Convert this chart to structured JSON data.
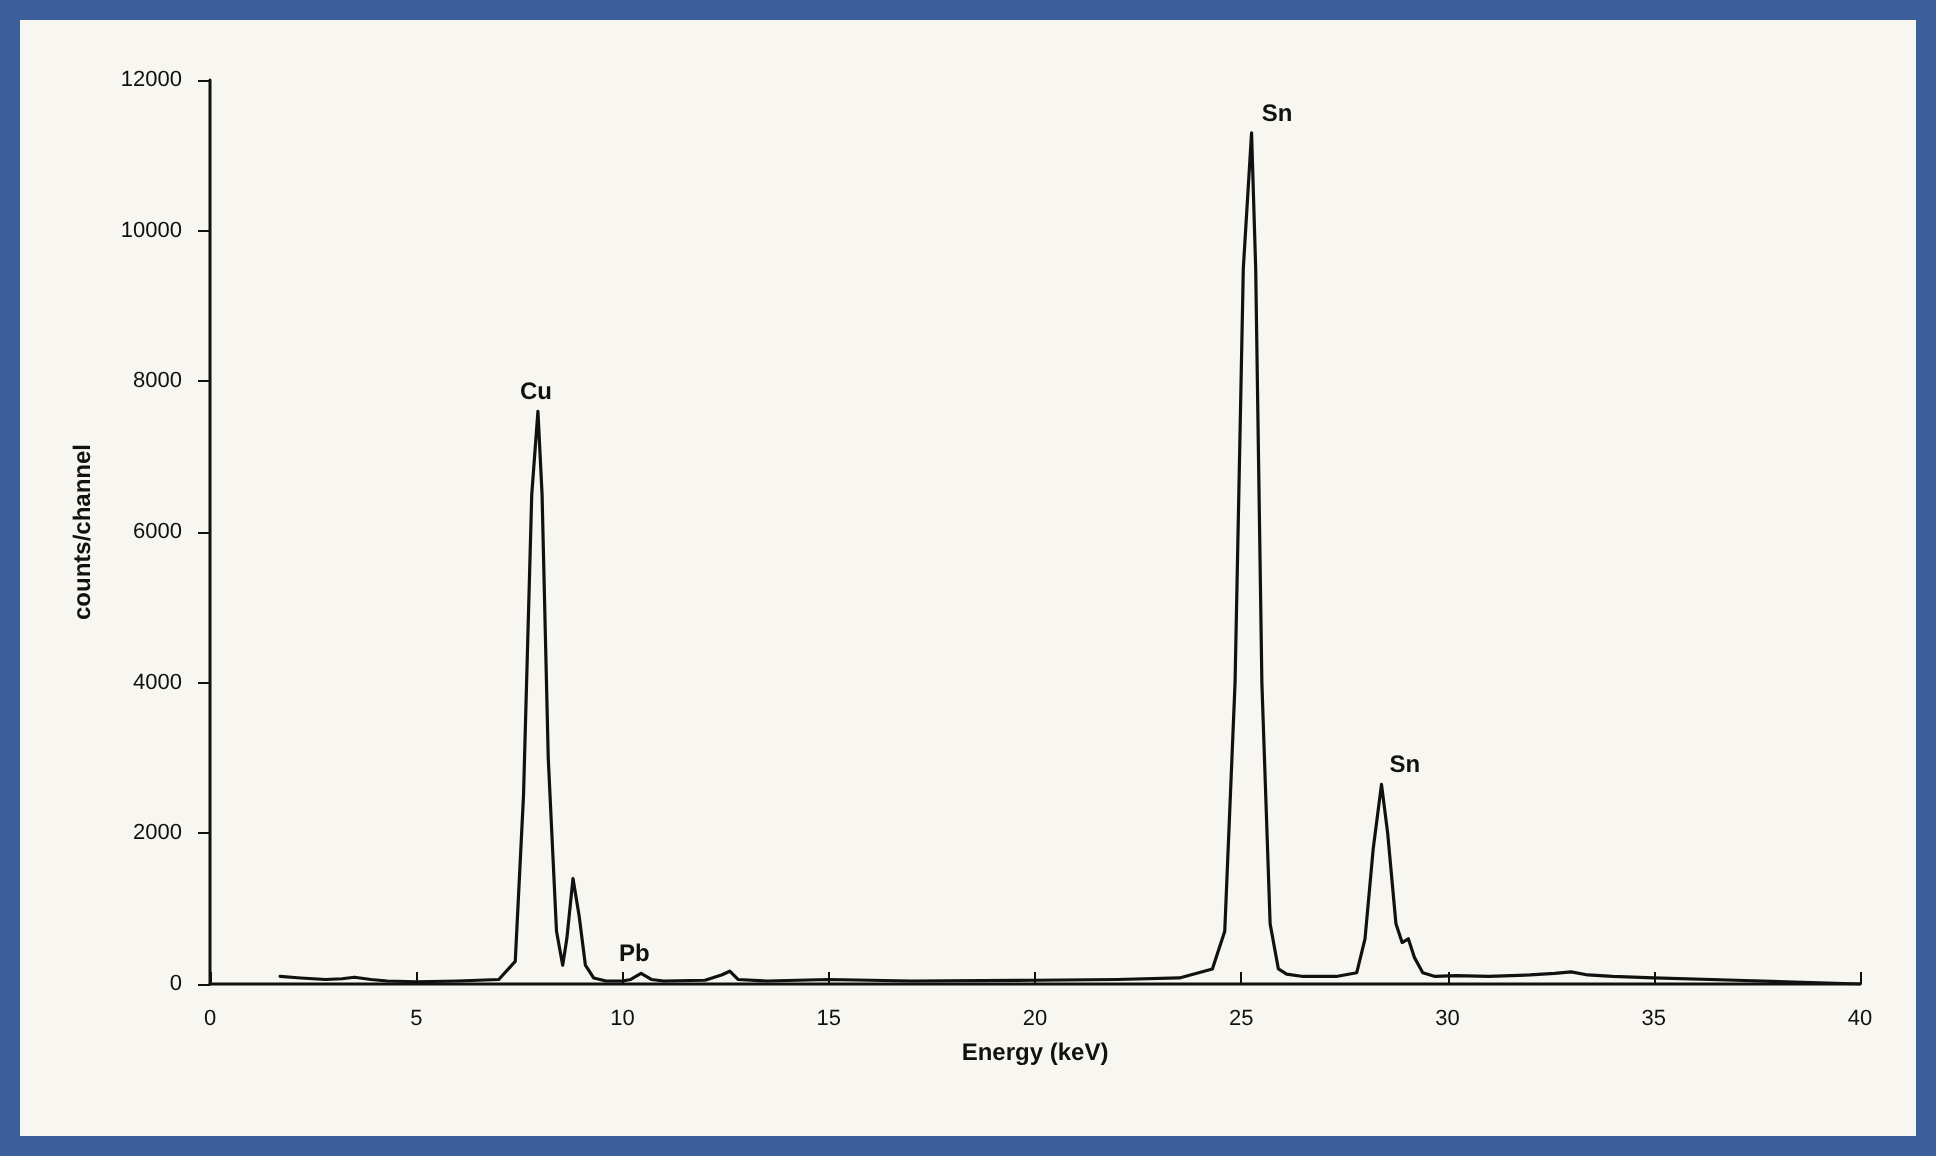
{
  "chart_data": {
    "type": "line",
    "xlabel": "Energy (keV)",
    "ylabel": "counts/channel",
    "series": [
      {
        "color": "#111111",
        "x": [
          1.7,
          2.2,
          2.8,
          3.2,
          3.5,
          3.9,
          4.3,
          5,
          6,
          7,
          7.4,
          7.6,
          7.8,
          7.95,
          8.05,
          8.2,
          8.4,
          8.55,
          8.65,
          8.8,
          8.95,
          9.1,
          9.3,
          9.6,
          10,
          10.2,
          10.45,
          10.7,
          11,
          12,
          12.4,
          12.6,
          12.8,
          13.5,
          15,
          17,
          20,
          22,
          23.5,
          24.3,
          24.6,
          24.85,
          25.05,
          25.25,
          25.35,
          25.5,
          25.7,
          25.9,
          26.1,
          26.5,
          27.3,
          27.8,
          28.0,
          28.2,
          28.4,
          28.55,
          28.75,
          28.9,
          29.05,
          29.2,
          29.4,
          29.7,
          30.2,
          31,
          32,
          32.6,
          33,
          33.4,
          34,
          35,
          37,
          40
        ],
        "values": [
          100,
          80,
          60,
          70,
          90,
          60,
          40,
          30,
          40,
          60,
          300,
          2500,
          6500,
          7600,
          6500,
          3000,
          700,
          250,
          600,
          1400,
          900,
          250,
          80,
          40,
          40,
          60,
          140,
          60,
          40,
          50,
          120,
          170,
          60,
          40,
          60,
          40,
          50,
          60,
          80,
          200,
          700,
          4000,
          9500,
          11300,
          9500,
          4000,
          800,
          200,
          130,
          100,
          100,
          150,
          600,
          1800,
          2650,
          2000,
          800,
          550,
          600,
          350,
          150,
          100,
          110,
          100,
          120,
          140,
          160,
          120,
          100,
          80,
          50,
          0
        ]
      }
    ],
    "xlim": [
      0,
      40
    ],
    "xticks": [
      0,
      5,
      10,
      15,
      20,
      25,
      30,
      35,
      40
    ],
    "ylim": [
      0,
      12000
    ],
    "yticks": [
      0,
      2000,
      4000,
      6000,
      8000,
      10000,
      12000
    ],
    "grid": false,
    "marker": "none",
    "line_style": "solid",
    "annotations": [
      {
        "text": "Cu",
        "x": 8.0,
        "y": 7600
      },
      {
        "text": "Pb",
        "x": 10.4,
        "y": 140
      },
      {
        "text": "Sn",
        "x": 25.3,
        "y": 11300
      },
      {
        "text": "Sn",
        "x": 28.4,
        "y": 2650
      }
    ]
  }
}
